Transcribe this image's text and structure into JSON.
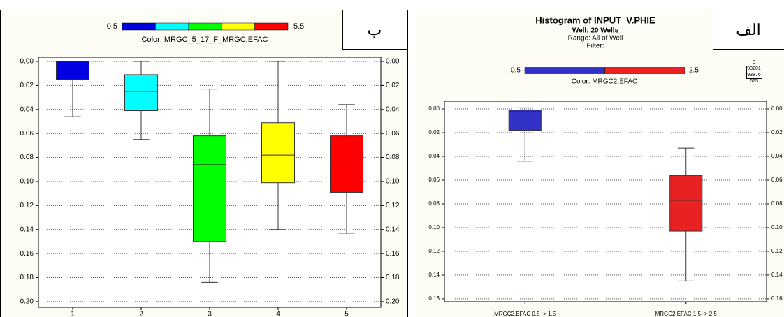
{
  "chart_data": [
    {
      "type": "box",
      "legend_min": 0.5,
      "legend_max": 5.5,
      "color_label": "Color: MRGC_5_17_F_MRGC.EFAC",
      "panel_label": "ب",
      "categories": [
        "1",
        "2",
        "3",
        "4",
        "5"
      ],
      "boxes": [
        {
          "min": 0.0,
          "q1": 0.0,
          "median": 0.002,
          "q3": 0.015,
          "max": 0.046,
          "color": "#0000e0"
        },
        {
          "min": 0.0,
          "q1": 0.011,
          "median": 0.025,
          "q3": 0.041,
          "max": 0.065,
          "color": "#00ffff"
        },
        {
          "min": 0.023,
          "q1": 0.062,
          "median": 0.086,
          "q3": 0.15,
          "max": 0.184,
          "color": "#00ff00"
        },
        {
          "min": 0.0,
          "q1": 0.051,
          "median": 0.078,
          "q3": 0.101,
          "max": 0.14,
          "color": "#ffff00"
        },
        {
          "min": 0.036,
          "q1": 0.062,
          "median": 0.083,
          "q3": 0.109,
          "max": 0.143,
          "color": "#ff0000"
        }
      ],
      "ylim": [
        -0.0035,
        0.2047
      ],
      "y_inverted": true,
      "grid": true,
      "yticks": [
        {
          "value": 0,
          "label": "0.00"
        },
        {
          "value": 0.02,
          "label": "0.02"
        },
        {
          "value": 0.04,
          "label": "0.04"
        },
        {
          "value": 0.06,
          "label": "0.06"
        },
        {
          "value": 0.08,
          "label": "0.08"
        },
        {
          "value": 0.1,
          "label": "0.10"
        },
        {
          "value": 0.12,
          "label": "0.12"
        },
        {
          "value": 0.14,
          "label": "0.14"
        },
        {
          "value": 0.16,
          "label": "0.16"
        },
        {
          "value": 0.18,
          "label": "0.18"
        },
        {
          "value": 0.2,
          "label": "0.20"
        }
      ]
    },
    {
      "type": "box",
      "title": "Histogram of INPUT_V.PHIE",
      "subtitle": "Well: 20 Wells",
      "range_text": "Range: All of Well",
      "filter_text": "Filter:",
      "legend_min": 0.5,
      "legend_max": 2.5,
      "color_label": "Color: MRGC2.EFAC",
      "panel_label": "الف",
      "stats": [
        0,
        93201,
        93876,
        675
      ],
      "categories": [
        "MRGC2.EFAC 0.5 -> 1.5",
        "MRGC2.EFAC 1.5 -> 2.5"
      ],
      "boxes": [
        {
          "min": -0.001,
          "q1": 0.001,
          "median": 0.002,
          "q3": 0.018,
          "max": 0.044,
          "color": "#3232c8"
        },
        {
          "min": 0.033,
          "q1": 0.056,
          "median": 0.077,
          "q3": 0.103,
          "max": 0.145,
          "color": "#e82222"
        }
      ],
      "ylim": [
        -0.0065,
        0.1624
      ],
      "y_inverted": true,
      "grid": true,
      "yticks": [
        {
          "value": 0,
          "label": "0.00"
        },
        {
          "value": 0.02,
          "label": "0.02"
        },
        {
          "value": 0.04,
          "label": "0.04"
        },
        {
          "value": 0.06,
          "label": "0.06"
        },
        {
          "value": 0.08,
          "label": "0.08"
        },
        {
          "value": 0.1,
          "label": "0.10"
        },
        {
          "value": 0.12,
          "label": "0.12"
        },
        {
          "value": 0.14,
          "label": "0.14"
        },
        {
          "value": 0.16,
          "label": "0.16"
        }
      ]
    }
  ]
}
